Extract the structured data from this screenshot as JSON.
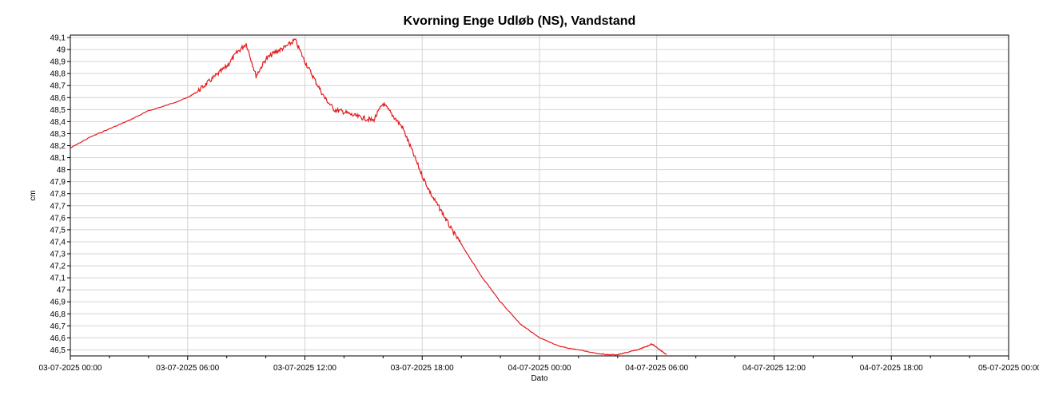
{
  "chart_data": {
    "type": "line",
    "title": "Kvorning Enge Udløb (NS), Vandstand",
    "xlabel": "Dato",
    "ylabel": "cm",
    "ylim": [
      46.45,
      49.12
    ],
    "y_ticks": [
      "49,1",
      "49",
      "48,9",
      "48,8",
      "48,7",
      "48,6",
      "48,5",
      "48,4",
      "48,3",
      "48,2",
      "48,1",
      "48",
      "47,9",
      "47,8",
      "47,7",
      "47,6",
      "47,5",
      "47,4",
      "47,3",
      "47,2",
      "47,1",
      "47",
      "46,9",
      "46,8",
      "46,7",
      "46,6",
      "46,5"
    ],
    "x_range": [
      "2025-07-03T00:00",
      "2025-07-05T00:00"
    ],
    "x_ticks": [
      "03-07-2025 00:00",
      "03-07-2025 06:00",
      "03-07-2025 12:00",
      "03-07-2025 18:00",
      "04-07-2025 00:00",
      "04-07-2025 06:00",
      "04-07-2025 12:00",
      "04-07-2025 18:00",
      "05-07-2025 00:00"
    ],
    "grid": true,
    "series": [
      {
        "color": "#e31a1c",
        "x": [
          "2025-07-03T00:00",
          "2025-07-03T01:00",
          "2025-07-03T02:00",
          "2025-07-03T03:00",
          "2025-07-03T04:00",
          "2025-07-03T05:00",
          "2025-07-03T06:00",
          "2025-07-03T06:30",
          "2025-07-03T07:00",
          "2025-07-03T07:30",
          "2025-07-03T08:00",
          "2025-07-03T08:30",
          "2025-07-03T09:00",
          "2025-07-03T09:30",
          "2025-07-03T10:00",
          "2025-07-03T10:30",
          "2025-07-03T11:00",
          "2025-07-03T11:30",
          "2025-07-03T12:00",
          "2025-07-03T12:30",
          "2025-07-03T13:00",
          "2025-07-03T13:30",
          "2025-07-03T14:00",
          "2025-07-03T14:30",
          "2025-07-03T15:00",
          "2025-07-03T15:30",
          "2025-07-03T16:00",
          "2025-07-03T16:30",
          "2025-07-03T17:00",
          "2025-07-03T17:30",
          "2025-07-03T18:00",
          "2025-07-03T18:30",
          "2025-07-03T19:00",
          "2025-07-03T19:30",
          "2025-07-03T20:00",
          "2025-07-03T21:00",
          "2025-07-03T22:00",
          "2025-07-03T23:00",
          "2025-07-04T00:00",
          "2025-07-04T01:00",
          "2025-07-04T02:00",
          "2025-07-04T03:00",
          "2025-07-04T03:30",
          "2025-07-04T04:00",
          "2025-07-04T04:30",
          "2025-07-04T05:00",
          "2025-07-04T05:30",
          "2025-07-04T05:45",
          "2025-07-04T06:00",
          "2025-07-04T06:15",
          "2025-07-04T06:30"
        ],
        "y": [
          48.18,
          48.27,
          48.34,
          48.41,
          48.49,
          48.54,
          48.6,
          48.65,
          48.72,
          48.79,
          48.86,
          48.97,
          49.05,
          48.78,
          48.92,
          48.98,
          49.02,
          49.08,
          48.9,
          48.75,
          48.6,
          48.5,
          48.48,
          48.45,
          48.43,
          48.41,
          48.55,
          48.45,
          48.35,
          48.15,
          47.95,
          47.78,
          47.65,
          47.5,
          47.38,
          47.12,
          46.9,
          46.72,
          46.6,
          46.53,
          46.5,
          46.47,
          46.46,
          46.46,
          46.48,
          46.5,
          46.53,
          46.55,
          46.52,
          46.49,
          46.46
        ]
      }
    ]
  }
}
